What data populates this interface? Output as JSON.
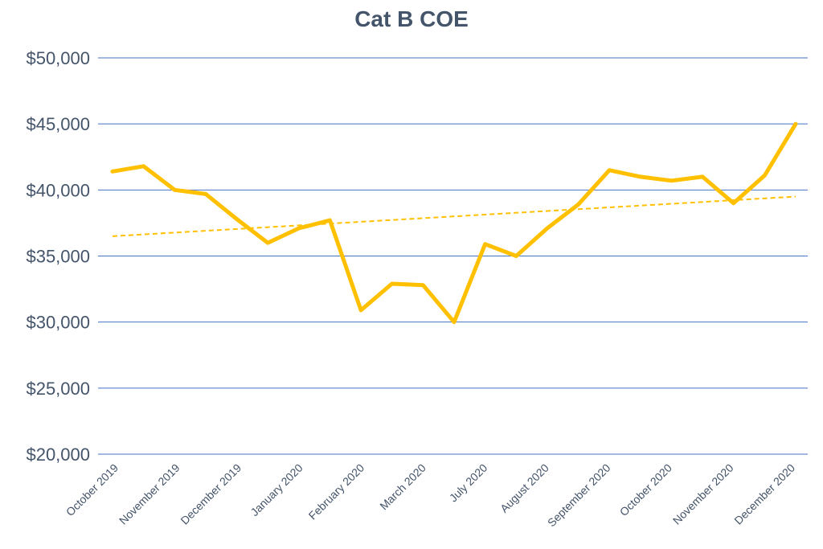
{
  "chart_data": {
    "type": "line",
    "title": "Cat B COE",
    "xlabel": "",
    "ylabel": "",
    "ylim": [
      20000,
      50000
    ],
    "yticks": [
      20000,
      25000,
      30000,
      35000,
      40000,
      45000,
      50000
    ],
    "ytick_labels": [
      "$20,000",
      "$25,000",
      "$30,000",
      "$35,000",
      "$40,000",
      "$45,000",
      "$50,000"
    ],
    "xtick_labels": [
      "October 2019",
      "November 2019",
      "December 2019",
      "January 2020",
      "February 2020",
      "March 2020",
      "July 2020",
      "August 2020",
      "September 2020",
      "October 2020",
      "November 2020",
      "December 2020"
    ],
    "grid": true,
    "legend": "none",
    "series": [
      {
        "values": [
          41400,
          41800,
          40000,
          39700,
          37800,
          36000,
          37100,
          37700,
          30900,
          32900,
          32800,
          30000,
          35900,
          35000,
          37100,
          38900,
          41500,
          41000,
          40700,
          41000,
          39000,
          41100,
          45000
        ],
        "color": "#ffc000",
        "style": "solid"
      }
    ],
    "trendline": {
      "type": "linear",
      "start": 36500,
      "end": 39500,
      "color": "#ffc000",
      "style": "dashed"
    },
    "gridline_color": "#4472c4"
  }
}
